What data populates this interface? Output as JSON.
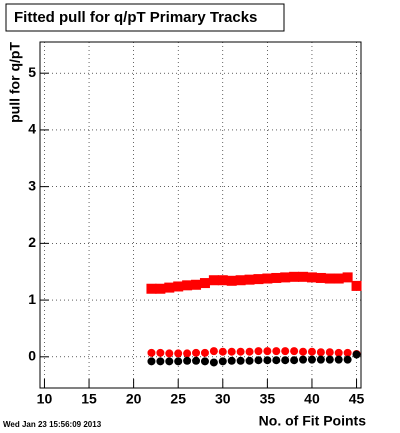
{
  "chart_data": {
    "type": "scatter",
    "title": "Fitted pull for q/pT Primary Tracks",
    "x_label": "No. of Fit Points",
    "y_label": "pull for q/pT",
    "footer": "Wed Jan 23 15:56:09 2013",
    "x": [
      22,
      23,
      24,
      25,
      26,
      27,
      28,
      29,
      30,
      31,
      32,
      33,
      34,
      35,
      36,
      37,
      38,
      39,
      40,
      41,
      42,
      43,
      44,
      45
    ],
    "series": [
      {
        "color": "#ff0000",
        "marker": "square",
        "values": [
          1.2,
          1.2,
          1.22,
          1.24,
          1.26,
          1.27,
          1.3,
          1.35,
          1.35,
          1.34,
          1.35,
          1.36,
          1.37,
          1.38,
          1.39,
          1.4,
          1.41,
          1.41,
          1.4,
          1.39,
          1.38,
          1.38,
          1.4,
          1.25
        ]
      },
      {
        "color": "#ff0000",
        "marker": "circle",
        "values": [
          0.07,
          0.07,
          0.06,
          0.06,
          0.06,
          0.07,
          0.07,
          0.1,
          0.09,
          0.09,
          0.09,
          0.09,
          0.1,
          0.1,
          0.1,
          0.1,
          0.1,
          0.09,
          0.09,
          0.08,
          0.08,
          0.07,
          0.07,
          0.05
        ]
      },
      {
        "color": "#000000",
        "marker": "circle",
        "values": [
          -0.08,
          -0.08,
          -0.08,
          -0.08,
          -0.07,
          -0.07,
          -0.08,
          -0.1,
          -0.08,
          -0.07,
          -0.07,
          -0.07,
          -0.06,
          -0.06,
          -0.06,
          -0.06,
          -0.06,
          -0.05,
          -0.05,
          -0.05,
          -0.05,
          -0.05,
          -0.05,
          0.04
        ]
      }
    ],
    "xlim": [
      9.5,
      45.5
    ],
    "ylim": [
      -0.55,
      5.55
    ],
    "xticks": [
      10,
      15,
      20,
      25,
      30,
      35,
      40,
      45
    ],
    "yticks": [
      0,
      1,
      2,
      3,
      4,
      5
    ],
    "grid": true
  }
}
